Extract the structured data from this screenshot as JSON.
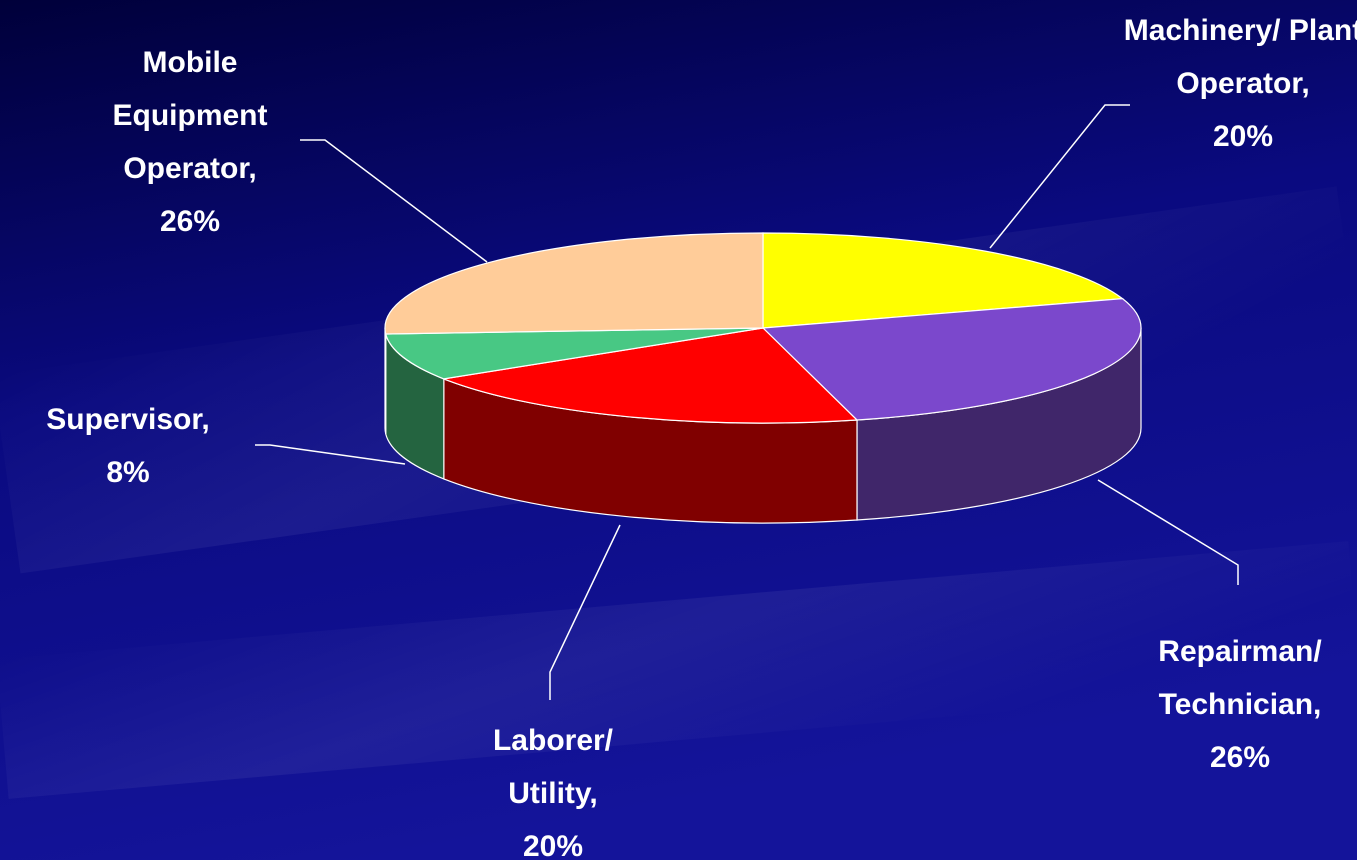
{
  "chart_data": {
    "type": "pie3d",
    "categories": [
      "Machinery/ Plant Operator,",
      "Repairman/ Technician,",
      "Laborer/ Utility,",
      "Supervisor,",
      "Mobile Equipment Operator,"
    ],
    "values": [
      20,
      26,
      20,
      8,
      26
    ],
    "value_labels": [
      "20%",
      "26%",
      "20%",
      "8%",
      "26%"
    ],
    "colors": [
      "#ffff00",
      "#7b48cc",
      "#ff0000",
      "#48c884",
      "#ffcc99"
    ],
    "side_colors": [
      "#808000",
      "#40266a",
      "#800000",
      "#246440",
      "#806650"
    ]
  }
}
